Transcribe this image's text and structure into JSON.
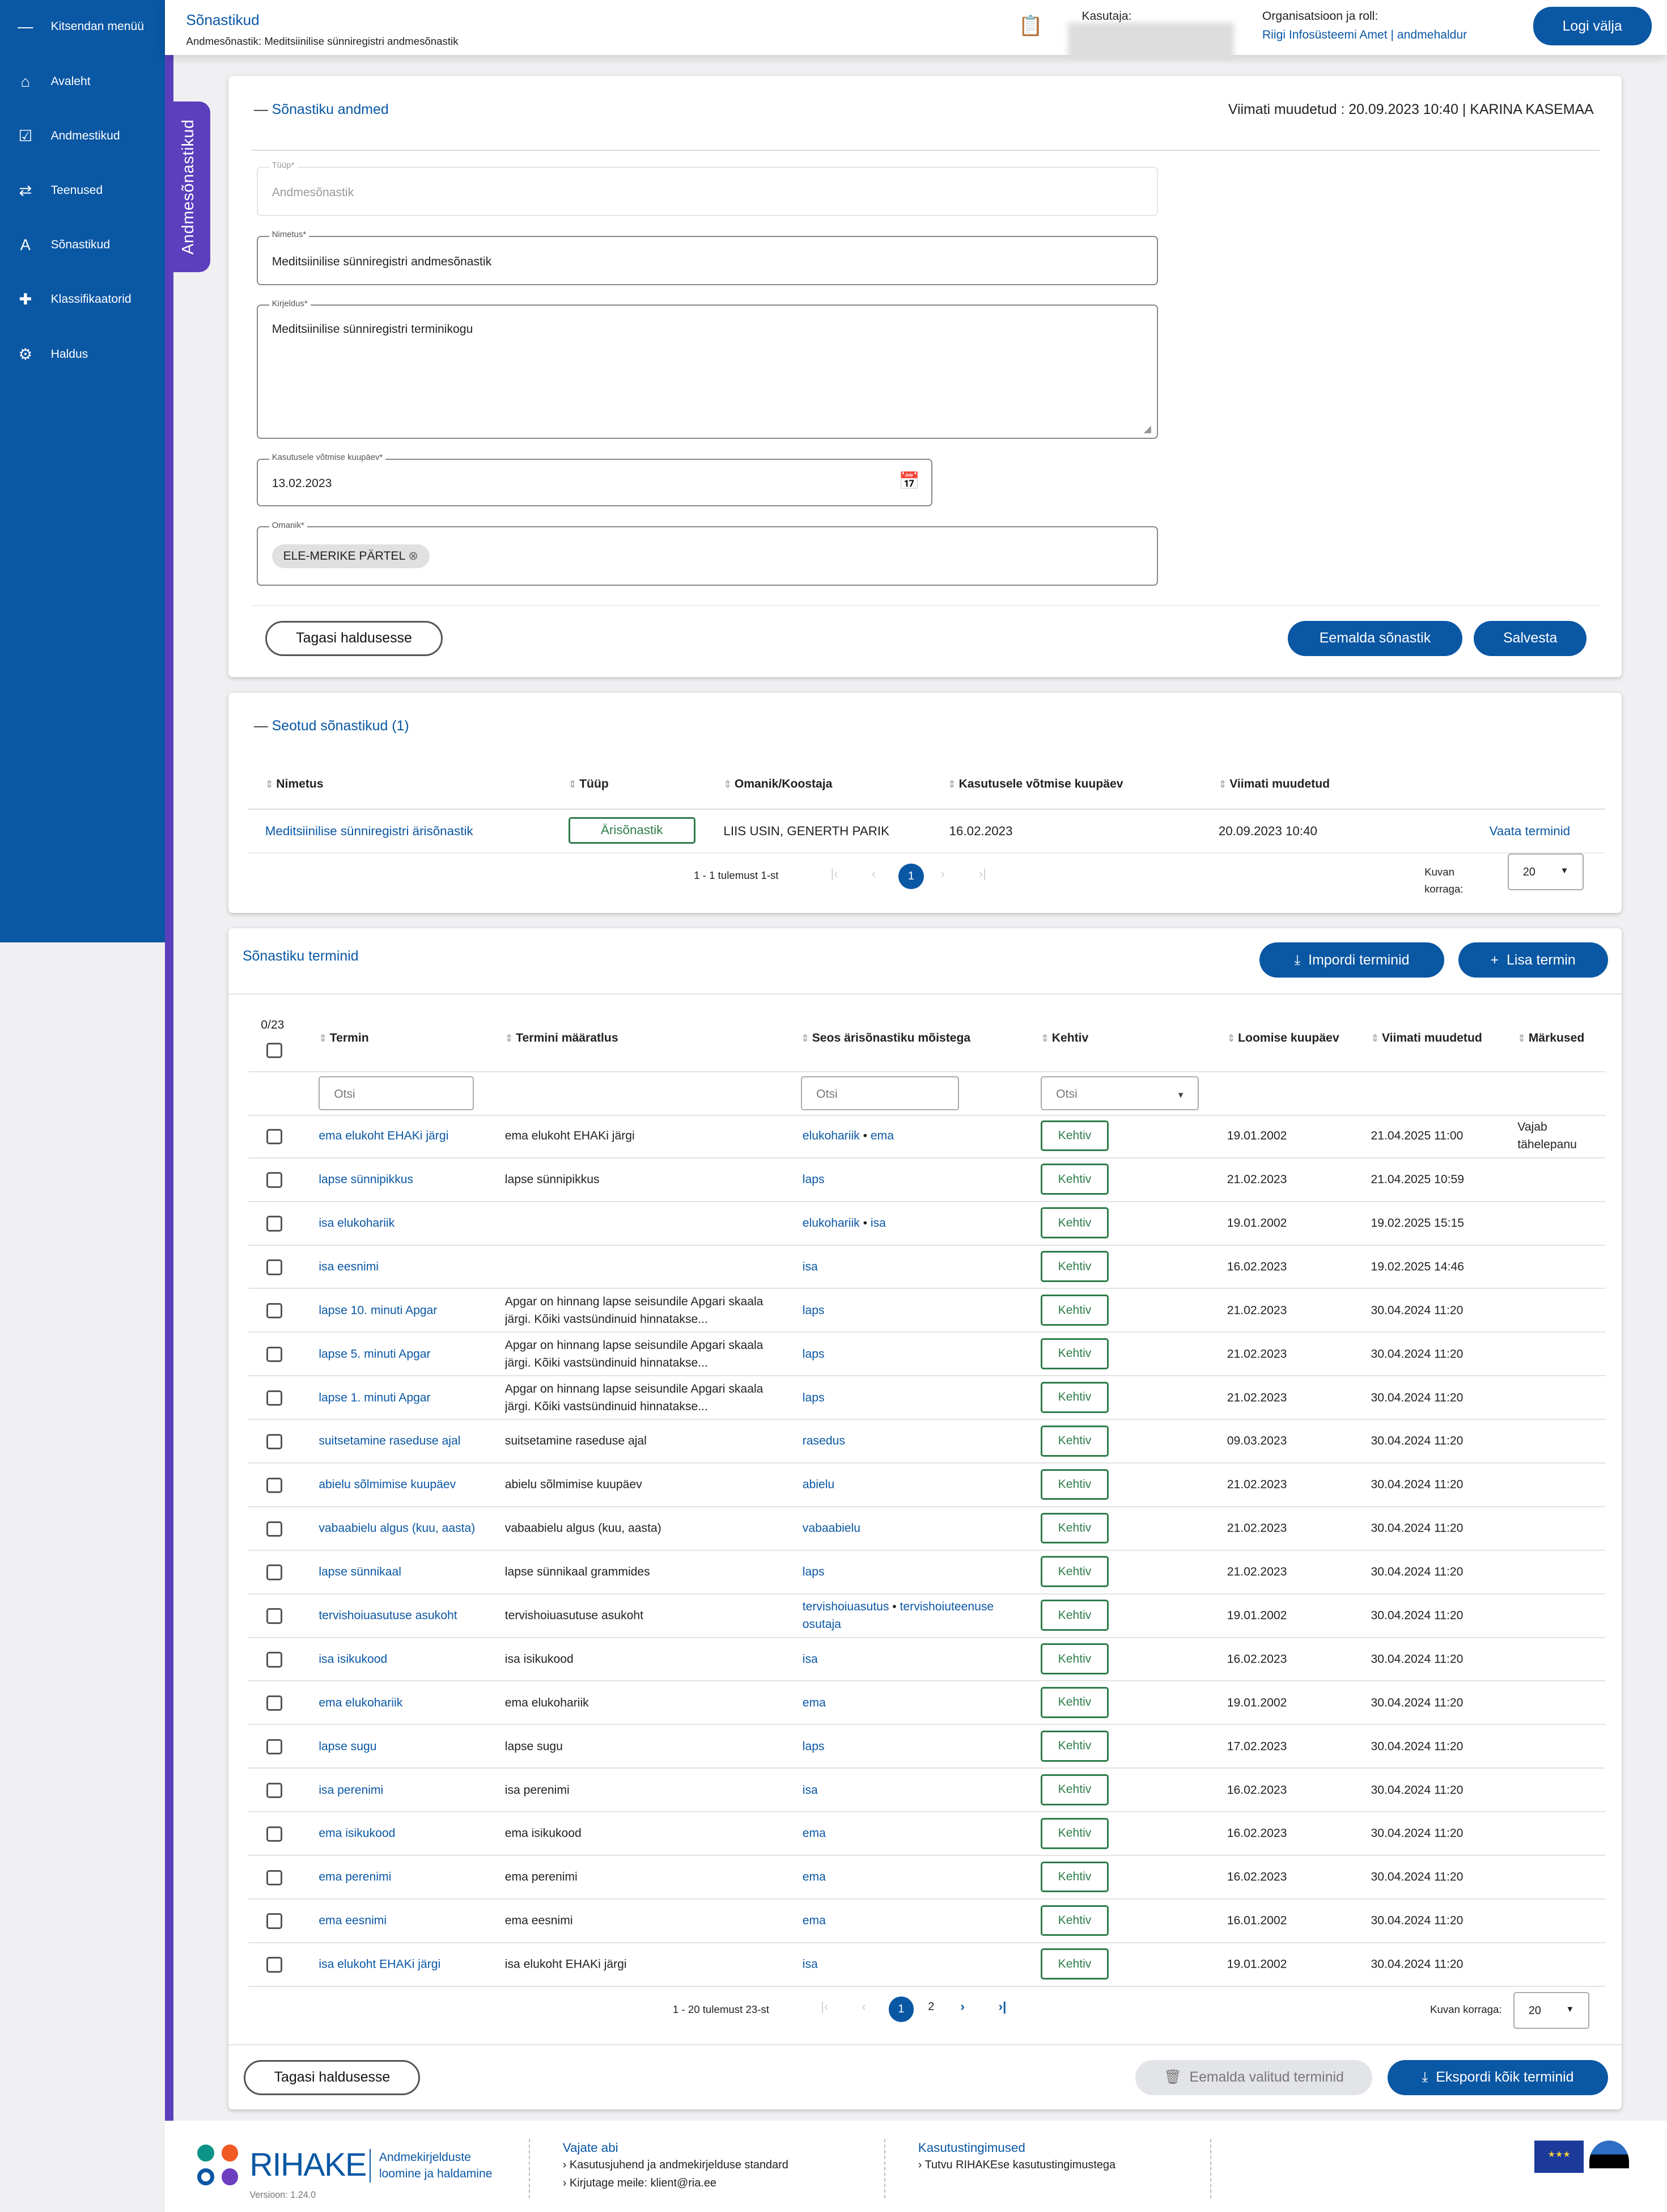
{
  "sidebar": {
    "collapse_label": "Kitsendan menüü",
    "items": [
      {
        "label": "Avaleht",
        "icon": "home-icon",
        "glyph": "⌂"
      },
      {
        "label": "Andmestikud",
        "icon": "checkbox-icon",
        "glyph": "☑"
      },
      {
        "label": "Teenused",
        "icon": "swap-icon",
        "glyph": "⇄"
      },
      {
        "label": "Sõnastikud",
        "icon": "dictionary-icon",
        "glyph": "A"
      },
      {
        "label": "Klassifikaatorid",
        "icon": "puzzle-icon",
        "glyph": "✚"
      },
      {
        "label": "Haldus",
        "icon": "settings-icon",
        "glyph": "⚙"
      }
    ],
    "side_tab": "Andmesõnastikud"
  },
  "header": {
    "title": "Sõnastikud",
    "subtitle": "Andmesõnastik: Meditsiinilise sünniregistri andmesõnastik",
    "user_label": "Kasutaja:",
    "org_label": "Organisatsioon ja roll:",
    "org_value": "Riigi Infosüsteemi Amet | andmehaldur",
    "logout": "Logi välja"
  },
  "details": {
    "title": "Sõnastiku andmed",
    "last_modified": "Viimati muudetud : 20.09.2023 10:40 | KARINA KASEMAA",
    "type_label": "Tüüp*",
    "type_value": "Andmesõnastik",
    "name_label": "Nimetus*",
    "name_value": "Meditsiinilise sünniregistri andmesõnastik",
    "desc_label": "Kirjeldus*",
    "desc_value": "Meditsiinilise sünniregistri terminikogu",
    "date_label": "Kasutusele võtmise kuupäev*",
    "date_value": "13.02.2023",
    "owner_label": "Omanik*",
    "owner_chip": "ELE-MERIKE PÄRTEL",
    "back": "Tagasi haldusesse",
    "remove": "Eemalda sõnastik",
    "save": "Salvesta"
  },
  "linked": {
    "title": "Seotud sõnastikud (1)",
    "columns": [
      "Nimetus",
      "Tüüp",
      "Omanik/Koostaja",
      "Kasutusele võtmise kuupäev",
      "Viimati muudetud"
    ],
    "row": {
      "name": "Meditsiinilise sünniregistri ärisõnastik",
      "type": "Ärisõnastik",
      "owner": "LIIS USIN, GENERTH PARIK",
      "date": "16.02.2023",
      "modified": "20.09.2023 10:40",
      "action": "Vaata terminid"
    },
    "summary": "1 - 1 tulemust 1-st",
    "page": "1",
    "per_page_label": "Kuvan korraga:",
    "per_page": "20"
  },
  "terms": {
    "title": "Sõnastiku terminid",
    "import": "Impordi terminid",
    "add": "Lisa termin",
    "selected": "0/23",
    "columns": [
      "Termin",
      "Termini määratlus",
      "Seos ärisõnastiku mõistega",
      "Kehtiv",
      "Loomise kuupäev",
      "Viimati muudetud",
      "Märkused"
    ],
    "filter_placeholder": "Otsi",
    "rows": [
      {
        "term": "ema elukoht EHAKi järgi",
        "def": "ema elukoht EHAKi järgi",
        "links": [
          "elukohariik",
          "ema"
        ],
        "status": "Kehtiv",
        "created": "19.01.2002",
        "modified": "21.04.2025 11:00",
        "note": "Vajab tähelepanu"
      },
      {
        "term": "lapse sünnipikkus",
        "def": "lapse sünnipikkus",
        "links": [
          "laps"
        ],
        "status": "Kehtiv",
        "created": "21.02.2023",
        "modified": "21.04.2025 10:59",
        "note": ""
      },
      {
        "term": "isa elukohariik",
        "def": "",
        "links": [
          "elukohariik",
          "isa"
        ],
        "status": "Kehtiv",
        "created": "19.01.2002",
        "modified": "19.02.2025 15:15",
        "note": ""
      },
      {
        "term": "isa eesnimi",
        "def": "",
        "links": [
          "isa"
        ],
        "status": "Kehtiv",
        "created": "16.02.2023",
        "modified": "19.02.2025 14:46",
        "note": ""
      },
      {
        "term": "lapse 10. minuti Apgar",
        "def": "Apgar on hinnang lapse seisundile Apgari skaala järgi. Kõiki vastsündinuid hinnatakse...",
        "links": [
          "laps"
        ],
        "status": "Kehtiv",
        "created": "21.02.2023",
        "modified": "30.04.2024 11:20",
        "note": ""
      },
      {
        "term": "lapse 5. minuti Apgar",
        "def": "Apgar on hinnang lapse seisundile Apgari skaala järgi. Kõiki vastsündinuid hinnatakse...",
        "links": [
          "laps"
        ],
        "status": "Kehtiv",
        "created": "21.02.2023",
        "modified": "30.04.2024 11:20",
        "note": ""
      },
      {
        "term": "lapse 1. minuti Apgar",
        "def": "Apgar on hinnang lapse seisundile Apgari skaala järgi. Kõiki vastsündinuid hinnatakse...",
        "links": [
          "laps"
        ],
        "status": "Kehtiv",
        "created": "21.02.2023",
        "modified": "30.04.2024 11:20",
        "note": ""
      },
      {
        "term": "suitsetamine raseduse ajal",
        "def": "suitsetamine raseduse ajal",
        "links": [
          "rasedus"
        ],
        "status": "Kehtiv",
        "created": "09.03.2023",
        "modified": "30.04.2024 11:20",
        "note": ""
      },
      {
        "term": "abielu sõlmimise kuupäev",
        "def": "abielu sõlmimise kuupäev",
        "links": [
          "abielu"
        ],
        "status": "Kehtiv",
        "created": "21.02.2023",
        "modified": "30.04.2024 11:20",
        "note": ""
      },
      {
        "term": "vabaabielu algus (kuu, aasta)",
        "def": "vabaabielu algus (kuu, aasta)",
        "links": [
          "vabaabielu"
        ],
        "status": "Kehtiv",
        "created": "21.02.2023",
        "modified": "30.04.2024 11:20",
        "note": ""
      },
      {
        "term": "lapse sünnikaal",
        "def": "lapse sünnikaal grammides",
        "links": [
          "laps"
        ],
        "status": "Kehtiv",
        "created": "21.02.2023",
        "modified": "30.04.2024 11:20",
        "note": ""
      },
      {
        "term": "tervishoiuasutuse asukoht",
        "def": "tervishoiuasutuse asukoht",
        "links": [
          "tervishoiuasutus",
          "tervishoiuteenuse osutaja"
        ],
        "status": "Kehtiv",
        "created": "19.01.2002",
        "modified": "30.04.2024 11:20",
        "note": ""
      },
      {
        "term": "isa isikukood",
        "def": "isa isikukood",
        "links": [
          "isa"
        ],
        "status": "Kehtiv",
        "created": "16.02.2023",
        "modified": "30.04.2024 11:20",
        "note": ""
      },
      {
        "term": "ema elukohariik",
        "def": "ema elukohariik",
        "links": [
          "ema"
        ],
        "status": "Kehtiv",
        "created": "19.01.2002",
        "modified": "30.04.2024 11:20",
        "note": ""
      },
      {
        "term": "lapse sugu",
        "def": "lapse sugu",
        "links": [
          "laps"
        ],
        "status": "Kehtiv",
        "created": "17.02.2023",
        "modified": "30.04.2024 11:20",
        "note": ""
      },
      {
        "term": "isa perenimi",
        "def": "isa perenimi",
        "links": [
          "isa"
        ],
        "status": "Kehtiv",
        "created": "16.02.2023",
        "modified": "30.04.2024 11:20",
        "note": ""
      },
      {
        "term": "ema isikukood",
        "def": "ema isikukood",
        "links": [
          "ema"
        ],
        "status": "Kehtiv",
        "created": "16.02.2023",
        "modified": "30.04.2024 11:20",
        "note": ""
      },
      {
        "term": "ema perenimi",
        "def": "ema perenimi",
        "links": [
          "ema"
        ],
        "status": "Kehtiv",
        "created": "16.02.2023",
        "modified": "30.04.2024 11:20",
        "note": ""
      },
      {
        "term": "ema eesnimi",
        "def": "ema eesnimi",
        "links": [
          "ema"
        ],
        "status": "Kehtiv",
        "created": "16.01.2002",
        "modified": "30.04.2024 11:20",
        "note": ""
      },
      {
        "term": "isa elukoht EHAKi järgi",
        "def": "isa elukoht EHAKi järgi",
        "links": [
          "isa"
        ],
        "status": "Kehtiv",
        "created": "19.01.2002",
        "modified": "30.04.2024 11:20",
        "note": ""
      }
    ],
    "summary": "1 - 20 tulemust 23-st",
    "pages": [
      "1",
      "2"
    ],
    "per_page_label": "Kuvan korraga:",
    "per_page": "20",
    "back": "Tagasi haldusesse",
    "remove_selected": "Eemalda valitud terminid",
    "export": "Ekspordi kõik terminid"
  },
  "footer": {
    "logo": "RIHAKE",
    "tagline1": "Andmekirjelduste",
    "tagline2": "loomine ja haldamine",
    "version": "Versioon: 1.24.0",
    "help_title": "Vajate abi",
    "help1": "› Kasutusjuhend ja andmekirjelduse standard",
    "help2_prefix": "› Kirjutage meile:",
    "help2_email": "klient@ria.ee",
    "terms_title": "Kasutustingimused",
    "terms1": "› Tutvu RIHAKEse kasutustingimustega"
  },
  "colors": {
    "primary": "#0a57a4",
    "accent": "#5b3fbd",
    "status": "#2e7d4a"
  }
}
